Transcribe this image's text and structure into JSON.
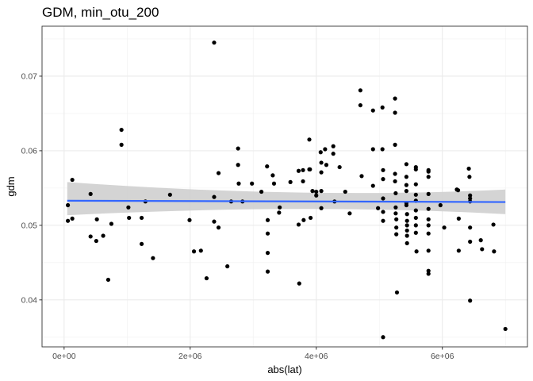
{
  "chart_data": {
    "type": "scatter",
    "title": "GDM, min_otu_200",
    "xlabel": "abs(lat)",
    "ylabel": "gdm",
    "xlim": [
      -350000,
      7350000
    ],
    "ylim": [
      0.0337,
      0.0767
    ],
    "x_ticks": [
      {
        "value": 0,
        "label": "0e+00"
      },
      {
        "value": 2000000,
        "label": "2e+06"
      },
      {
        "value": 4000000,
        "label": "4e+06"
      },
      {
        "value": 6000000,
        "label": "6e+06"
      }
    ],
    "y_ticks": [
      {
        "value": 0.04,
        "label": "0.04"
      },
      {
        "value": 0.05,
        "label": "0.05"
      },
      {
        "value": 0.06,
        "label": "0.06"
      },
      {
        "value": 0.07,
        "label": "0.07"
      }
    ],
    "grid": true,
    "smooth": {
      "method": "linear",
      "x": [
        50000,
        7000000
      ],
      "y": [
        0.0533,
        0.05312
      ],
      "ci_lower": [
        0.05135,
        0.0515
      ],
      "ci_upper": [
        0.0558,
        0.0548
      ],
      "ci_mid_x": 3800000,
      "ci_mid": [
        0.05295,
        0.0535
      ],
      "line_color": "#3366FF",
      "band_color": "#cccccc"
    },
    "points": [
      [
        60000,
        0.0527
      ],
      [
        60000,
        0.0506
      ],
      [
        130000,
        0.0509
      ],
      [
        130000,
        0.0561
      ],
      [
        420000,
        0.0542
      ],
      [
        420000,
        0.0485
      ],
      [
        510000,
        0.0479
      ],
      [
        520000,
        0.0508
      ],
      [
        620000,
        0.0486
      ],
      [
        700000,
        0.0427
      ],
      [
        750000,
        0.0502
      ],
      [
        910000,
        0.0628
      ],
      [
        910000,
        0.0608
      ],
      [
        1020000,
        0.0524
      ],
      [
        1030000,
        0.051
      ],
      [
        1230000,
        0.051
      ],
      [
        1230000,
        0.0475
      ],
      [
        1290000,
        0.0532
      ],
      [
        1410000,
        0.0456
      ],
      [
        1680000,
        0.0541
      ],
      [
        1990000,
        0.0507
      ],
      [
        2060000,
        0.0465
      ],
      [
        2170000,
        0.0466
      ],
      [
        2260000,
        0.0429
      ],
      [
        2380000,
        0.0745
      ],
      [
        2380000,
        0.0538
      ],
      [
        2380000,
        0.0505
      ],
      [
        2450000,
        0.0497
      ],
      [
        2450000,
        0.057
      ],
      [
        2590000,
        0.0445
      ],
      [
        2650000,
        0.0532
      ],
      [
        2760000,
        0.0603
      ],
      [
        2760000,
        0.0581
      ],
      [
        2770000,
        0.0556
      ],
      [
        2830000,
        0.0532
      ],
      [
        2980000,
        0.0556
      ],
      [
        3130000,
        0.0545
      ],
      [
        3220000,
        0.0579
      ],
      [
        3230000,
        0.0507
      ],
      [
        3230000,
        0.0489
      ],
      [
        3230000,
        0.0463
      ],
      [
        3230000,
        0.0438
      ],
      [
        3310000,
        0.0567
      ],
      [
        3330000,
        0.0556
      ],
      [
        3410000,
        0.0517
      ],
      [
        3420000,
        0.0524
      ],
      [
        3590000,
        0.0558
      ],
      [
        3720000,
        0.0573
      ],
      [
        3720000,
        0.0501
      ],
      [
        3730000,
        0.0422
      ],
      [
        3790000,
        0.0574
      ],
      [
        3790000,
        0.0559
      ],
      [
        3800000,
        0.0507
      ],
      [
        3890000,
        0.0615
      ],
      [
        3890000,
        0.0575
      ],
      [
        3900000,
        0.0575
      ],
      [
        3910000,
        0.051
      ],
      [
        3940000,
        0.0546
      ],
      [
        4000000,
        0.0545
      ],
      [
        4000000,
        0.054
      ],
      [
        4070000,
        0.0598
      ],
      [
        4080000,
        0.0584
      ],
      [
        4080000,
        0.0571
      ],
      [
        4080000,
        0.0546
      ],
      [
        4080000,
        0.0523
      ],
      [
        4140000,
        0.0602
      ],
      [
        4160000,
        0.0581
      ],
      [
        4270000,
        0.0606
      ],
      [
        4270000,
        0.0596
      ],
      [
        4290000,
        0.0532
      ],
      [
        4370000,
        0.0578
      ],
      [
        4460000,
        0.0545
      ],
      [
        4530000,
        0.0516
      ],
      [
        4700000,
        0.0681
      ],
      [
        4700000,
        0.0661
      ],
      [
        4720000,
        0.0566
      ],
      [
        4900000,
        0.0654
      ],
      [
        4900000,
        0.0602
      ],
      [
        4900000,
        0.0553
      ],
      [
        4980000,
        0.0523
      ],
      [
        5050000,
        0.0658
      ],
      [
        5050000,
        0.0602
      ],
      [
        5060000,
        0.0574
      ],
      [
        5060000,
        0.0562
      ],
      [
        5060000,
        0.0536
      ],
      [
        5060000,
        0.0518
      ],
      [
        5060000,
        0.0506
      ],
      [
        5060000,
        0.035
      ],
      [
        5250000,
        0.067
      ],
      [
        5250000,
        0.0651
      ],
      [
        5250000,
        0.0608
      ],
      [
        5250000,
        0.0569
      ],
      [
        5250000,
        0.0559
      ],
      [
        5260000,
        0.0543
      ],
      [
        5260000,
        0.0524
      ],
      [
        5260000,
        0.0516
      ],
      [
        5270000,
        0.0508
      ],
      [
        5270000,
        0.0497
      ],
      [
        5270000,
        0.0488
      ],
      [
        5280000,
        0.041
      ],
      [
        5430000,
        0.0582
      ],
      [
        5430000,
        0.0565
      ],
      [
        5430000,
        0.0554
      ],
      [
        5430000,
        0.0546
      ],
      [
        5430000,
        0.053
      ],
      [
        5430000,
        0.0527
      ],
      [
        5440000,
        0.0515
      ],
      [
        5440000,
        0.0506
      ],
      [
        5440000,
        0.05
      ],
      [
        5440000,
        0.0493
      ],
      [
        5440000,
        0.0486
      ],
      [
        5440000,
        0.0476
      ],
      [
        5580000,
        0.0578
      ],
      [
        5580000,
        0.0575
      ],
      [
        5580000,
        0.0555
      ],
      [
        5580000,
        0.0541
      ],
      [
        5580000,
        0.0533
      ],
      [
        5580000,
        0.052
      ],
      [
        5580000,
        0.051
      ],
      [
        5580000,
        0.05
      ],
      [
        5580000,
        0.049
      ],
      [
        5590000,
        0.0465
      ],
      [
        5780000,
        0.0574
      ],
      [
        5780000,
        0.0572
      ],
      [
        5780000,
        0.0565
      ],
      [
        5780000,
        0.0542
      ],
      [
        5780000,
        0.0522
      ],
      [
        5780000,
        0.0508
      ],
      [
        5780000,
        0.05
      ],
      [
        5780000,
        0.0489
      ],
      [
        5780000,
        0.0466
      ],
      [
        5780000,
        0.0439
      ],
      [
        5780000,
        0.0435
      ],
      [
        5970000,
        0.0527
      ],
      [
        6030000,
        0.0497
      ],
      [
        6230000,
        0.0548
      ],
      [
        6250000,
        0.0547
      ],
      [
        6260000,
        0.0509
      ],
      [
        6260000,
        0.0466
      ],
      [
        6420000,
        0.0576
      ],
      [
        6430000,
        0.0565
      ],
      [
        6440000,
        0.054
      ],
      [
        6440000,
        0.0536
      ],
      [
        6440000,
        0.0532
      ],
      [
        6440000,
        0.0497
      ],
      [
        6440000,
        0.0478
      ],
      [
        6440000,
        0.0399
      ],
      [
        6610000,
        0.048
      ],
      [
        6630000,
        0.0468
      ],
      [
        6810000,
        0.0501
      ],
      [
        6820000,
        0.0465
      ],
      [
        7000000,
        0.0361
      ]
    ]
  }
}
